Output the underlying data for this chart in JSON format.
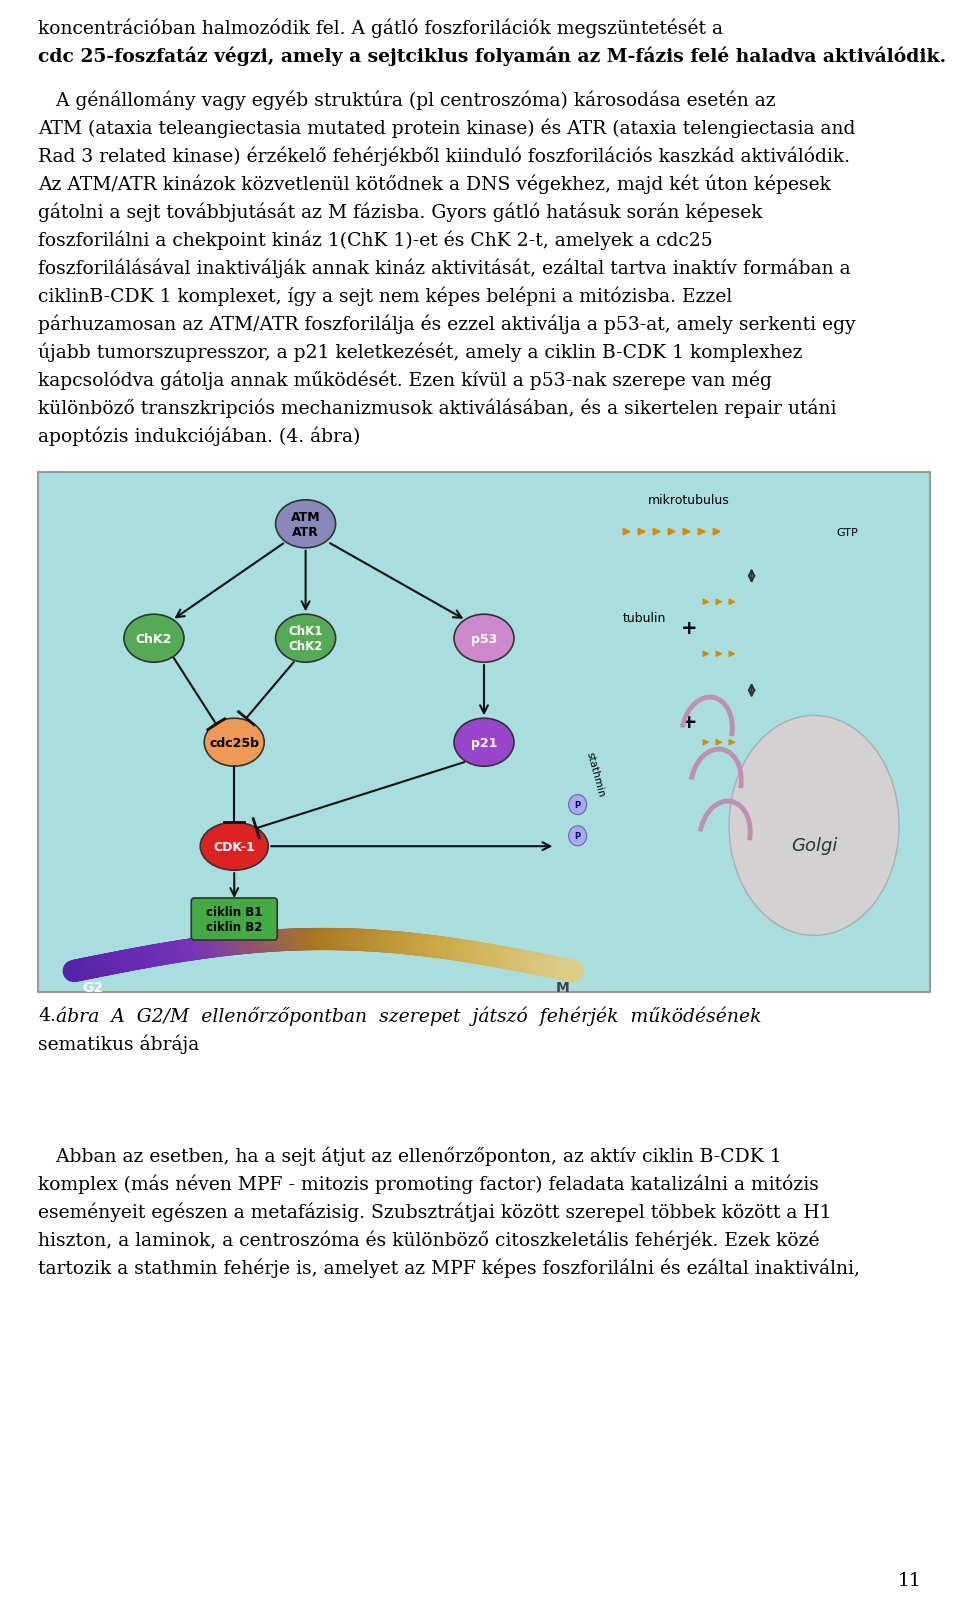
{
  "page_bg": "#ffffff",
  "fig_bg": "#a8dede",
  "text_color": "#000000",
  "top_text_lines": [
    "koncentrációban halmozódik fel. A gátló foszforilációk megszüntetését a",
    "cdc 25-foszfatáz végzi, amely a sejtciklus folyamán az M-fázis felé haladva aktiválódik.",
    "",
    "   A génállomány vagy egyéb struktúra (pl centroszóma) károsodása esetén az",
    "ATM (ataxia teleangiectasia mutated protein kinase) és ATR (ataxia telengiectasia and",
    "Rad 3 related kinase) érzékelő fehérjékből kiinduló foszforilációs kaszkád aktiválódik.",
    "Az ATM/ATR kinázok közvetlenül kötődnek a DNS végekhez, majd két úton képesek",
    "gátolni a sejt továbbjutását az M fázisba. Gyors gátló hatásuk során képesek",
    "foszforilálni a chekpoint kináz 1(ChK 1)-et és ChK 2-t, amelyek a cdc25",
    "foszforilálásával inaktiválják annak kináz aktivitását, ezáltal tartva inaktív formában a",
    "ciklinB-CDK 1 komplexet, így a sejt nem képes belépni a mitózisba. Ezzel",
    "párhuzamosan az ATM/ATR foszforilálja és ezzel aktiválja a p53-at, amely serkenti egy",
    "újabb tumorszupresszor, a p21 keletkezését, amely a ciklin B-CDK 1 komplexhez",
    "kapcsolódva gátolja annak működését. Ezen kívül a p53-nak szerepe van még",
    "különböző transzkripciós mechanizmusok aktiválásában, és a sikertelen repair utáni",
    "apoptózis indukciójában. (4. ábra)"
  ],
  "bottom_text_lines": [
    "4. ábra A G2/M ellenőrzőpontban szerepet játszó fehérjék működésének",
    "sematikus ábrája",
    "",
    "   Abban az esetben, ha a sejt átjut az ellenőrzőponton, az aktív ciklin B-CDK 1",
    "komplex (más néven MPF - mitozis promoting factor) feladata katalizálni a mitózis",
    "eseményeit egészen a metafázisig. Szubsztrátjai között szerepel többek között a H1",
    "hiszton, a laminok, a centroszóma és különböző citoszkeletális fehérjék. Ezek közé",
    "tartozik a stathmin fehérje is, amelyet az MPF képes foszforilálni és ezáltal inaktiválni,"
  ],
  "page_number": "11"
}
